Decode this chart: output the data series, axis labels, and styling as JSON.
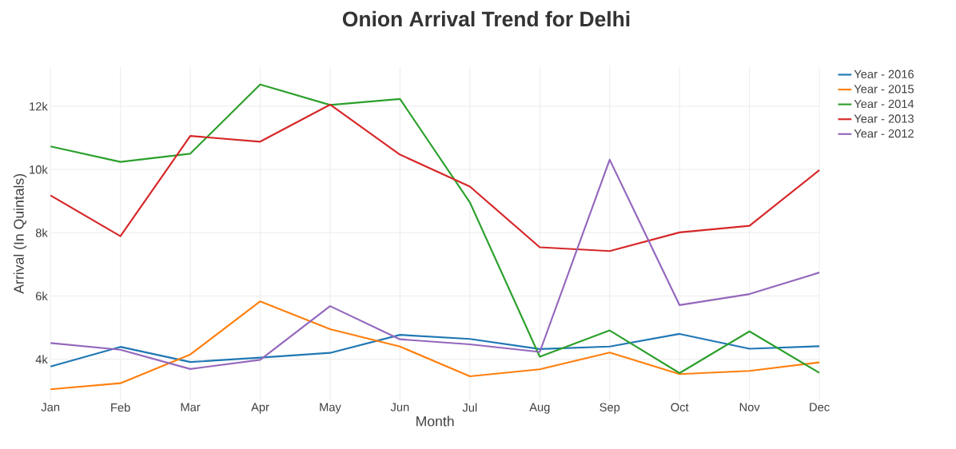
{
  "chart_data": {
    "type": "line",
    "title": "Onion Arrival Trend for Delhi",
    "xlabel": "Month",
    "ylabel": "Arrival (In Quintals)",
    "categories": [
      "Jan",
      "Feb",
      "Mar",
      "Apr",
      "May",
      "Jun",
      "Jul",
      "Aug",
      "Sep",
      "Oct",
      "Nov",
      "Dec"
    ],
    "series": [
      {
        "name": "Year - 2016",
        "color": "#1f77b4",
        "values": [
          3770,
          4390,
          3910,
          4050,
          4200,
          4770,
          4640,
          4320,
          4400,
          4800,
          4330,
          4410
        ]
      },
      {
        "name": "Year - 2015",
        "color": "#ff7f0e",
        "values": [
          3050,
          3240,
          4150,
          5830,
          4950,
          4400,
          3460,
          3680,
          4210,
          3530,
          3630,
          3900
        ]
      },
      {
        "name": "Year - 2014",
        "color": "#2ca02c",
        "values": [
          10730,
          10240,
          10500,
          12690,
          12040,
          12230,
          8960,
          4080,
          4910,
          3560,
          4880,
          3570
        ]
      },
      {
        "name": "Year - 2013",
        "color": "#d62728",
        "values": [
          9180,
          7890,
          11060,
          10880,
          12050,
          10470,
          9460,
          7540,
          7420,
          8010,
          8220,
          9980
        ]
      },
      {
        "name": "Year - 2012",
        "color": "#9467bd",
        "values": [
          4510,
          4300,
          3690,
          3980,
          5680,
          4630,
          4470,
          4230,
          10310,
          5710,
          6060,
          6740
        ]
      }
    ],
    "ylim": [
      2700,
      13250
    ],
    "yticks": [
      {
        "value": 4000,
        "label": "4k"
      },
      {
        "value": 6000,
        "label": "6k"
      },
      {
        "value": 8000,
        "label": "8k"
      },
      {
        "value": 10000,
        "label": "10k"
      },
      {
        "value": 12000,
        "label": "12k"
      }
    ],
    "grid": true,
    "legend": "top right",
    "line_style": "solid"
  }
}
